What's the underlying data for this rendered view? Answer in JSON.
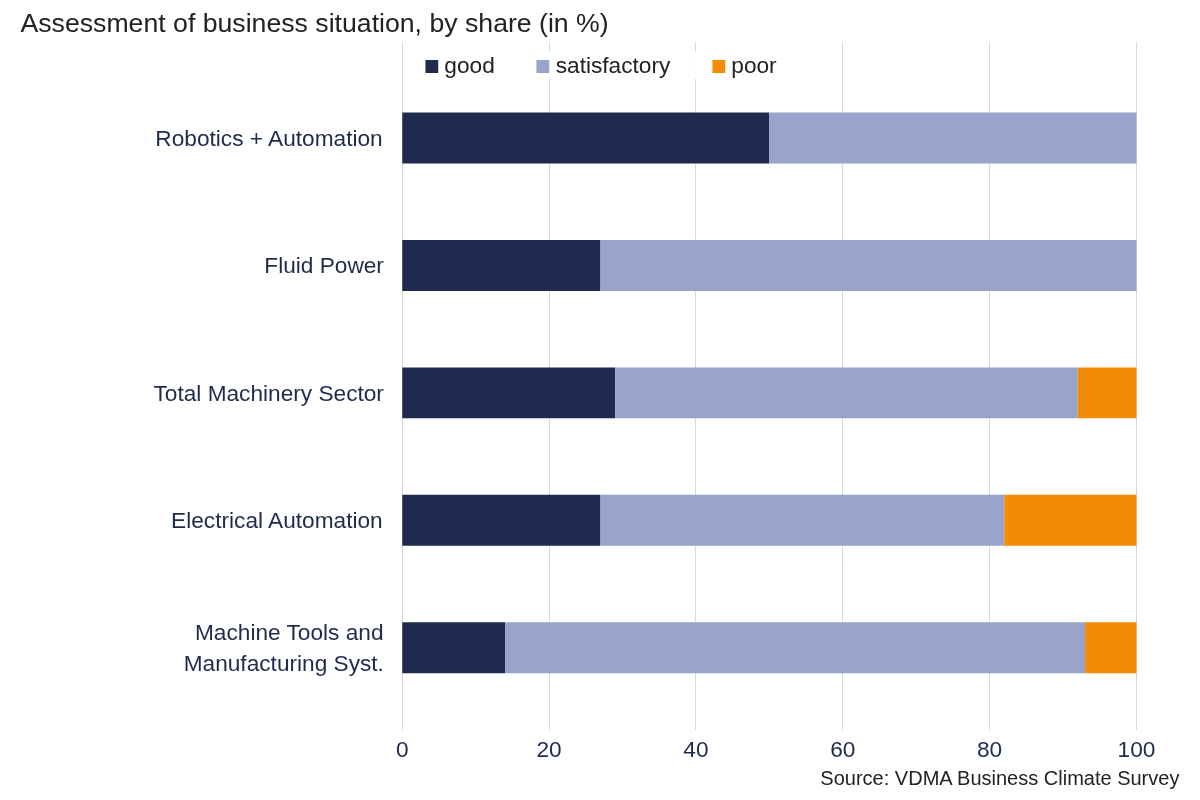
{
  "chart_data": {
    "type": "bar",
    "orientation": "horizontal",
    "stacked": true,
    "title": "Assessment of business situation, by share (in %)",
    "categories": [
      "Robotics + Automation",
      "Fluid Power",
      "Total Machinery Sector",
      "Electrical Automation",
      "Machine Tools and\nManufacturing Syst."
    ],
    "series": [
      {
        "name": "good",
        "color": "#1f2a4f",
        "values": [
          50,
          27,
          29,
          27,
          14
        ]
      },
      {
        "name": "satisfactory",
        "color": "#98a4cc",
        "values": [
          50,
          73,
          63,
          55,
          79
        ]
      },
      {
        "name": "poor",
        "color": "#f58a07",
        "values": [
          0,
          0,
          8,
          18,
          7
        ]
      }
    ],
    "xlim": [
      0,
      100
    ],
    "xticks": [
      0,
      20,
      40,
      60,
      80,
      100
    ],
    "grid": "x",
    "legend": "top",
    "annotations": [
      "Source: VDMA Business Climate Survey"
    ]
  }
}
